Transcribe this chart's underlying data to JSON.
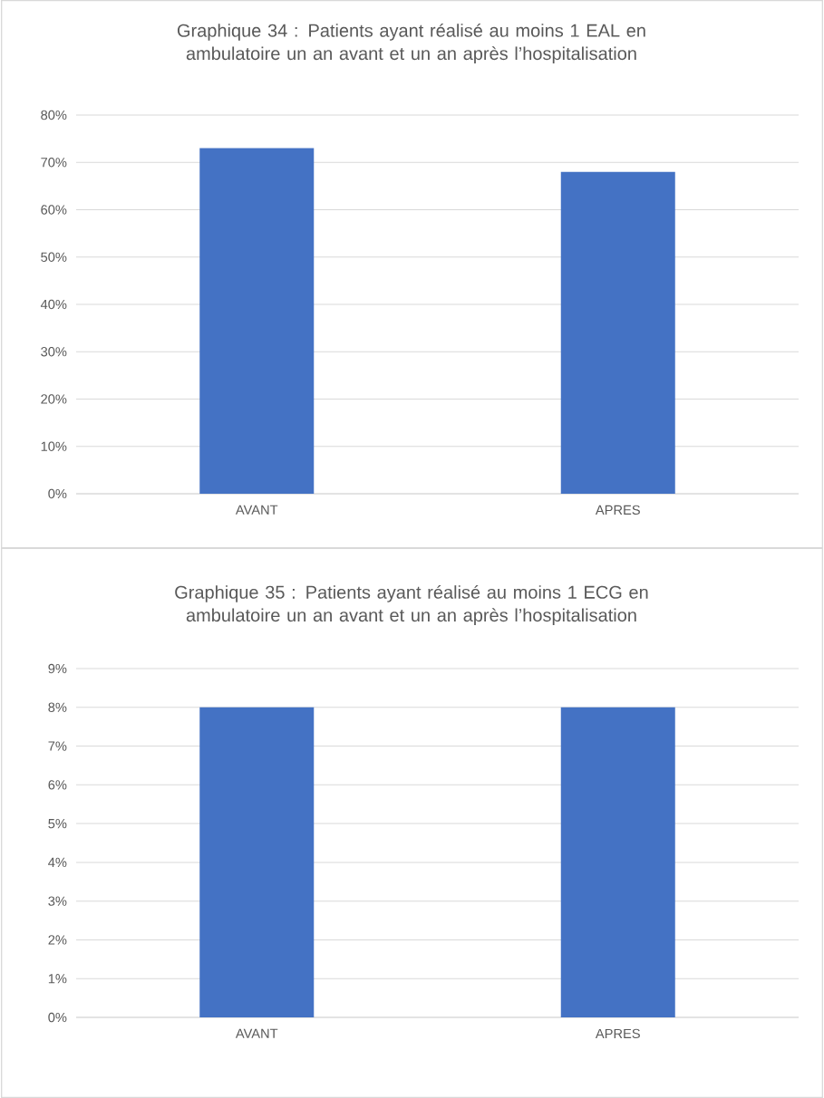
{
  "chart_data": [
    {
      "type": "bar",
      "title": "Graphique 34 : Patients ayant réalisé au moins 1 EAL en ambulatoire un an avant et un an après l’hospitalisation",
      "categories": [
        "AVANT",
        "APRES"
      ],
      "values": [
        73,
        68
      ],
      "color": "#4472c4",
      "ylim": [
        0,
        80
      ],
      "yticks": [
        {
          "value": 0,
          "label": "0%"
        },
        {
          "value": 10,
          "label": "10%"
        },
        {
          "value": 20,
          "label": "20%"
        },
        {
          "value": 30,
          "label": "30%"
        },
        {
          "value": 40,
          "label": "40%"
        },
        {
          "value": 50,
          "label": "50%"
        },
        {
          "value": 60,
          "label": "60%"
        },
        {
          "value": 70,
          "label": "70%"
        },
        {
          "value": 80,
          "label": "80%"
        }
      ],
      "grid": "y"
    },
    {
      "type": "bar",
      "title": "Graphique 35 : Patients ayant réalisé au moins 1 ECG en ambulatoire un an avant et un an après l’hospitalisation",
      "categories": [
        "AVANT",
        "APRES"
      ],
      "values": [
        8,
        8
      ],
      "color": "#4472c4",
      "ylim": [
        0,
        9
      ],
      "yticks": [
        {
          "value": 0,
          "label": "0%"
        },
        {
          "value": 1,
          "label": "1%"
        },
        {
          "value": 2,
          "label": "2%"
        },
        {
          "value": 3,
          "label": "3%"
        },
        {
          "value": 4,
          "label": "4%"
        },
        {
          "value": 5,
          "label": "5%"
        },
        {
          "value": 6,
          "label": "6%"
        },
        {
          "value": 7,
          "label": "7%"
        },
        {
          "value": 8,
          "label": "8%"
        },
        {
          "value": 9,
          "label": "9%"
        }
      ],
      "grid": "y"
    }
  ]
}
